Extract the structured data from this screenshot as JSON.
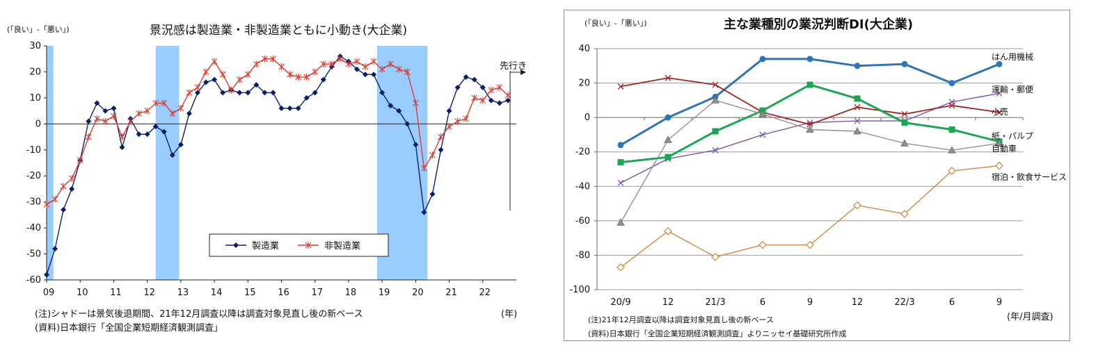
{
  "chart_data": [
    {
      "type": "line",
      "title": "景況感は製造業・非製造業ともに小動き(大企業)",
      "ylabel": "(「良い」-「悪い」)",
      "xlabel": "(年)",
      "ylim": [
        -60,
        30
      ],
      "yticks": [
        -60,
        -50,
        -40,
        -30,
        -20,
        -10,
        0,
        10,
        20,
        30
      ],
      "xticks": [
        "09",
        "10",
        "11",
        "12",
        "13",
        "14",
        "15",
        "16",
        "17",
        "18",
        "19",
        "20",
        "21",
        "22"
      ],
      "x_start": 2009.0,
      "x_step": 0.25,
      "shadows": [
        [
          2009.0,
          2009.2
        ],
        [
          2012.25,
          2012.95
        ],
        [
          2018.85,
          2020.35
        ]
      ],
      "forecast_label": "先行き",
      "grid": false,
      "legend_position": "bottom-center",
      "series": [
        {
          "name": "製造業",
          "color": "#0a1f6b",
          "marker": "diamond",
          "values": [
            -58,
            -48,
            -33,
            -25,
            -14,
            1,
            8,
            5,
            6,
            -9,
            2,
            -4,
            -4,
            -1,
            -3,
            -12,
            -8,
            4,
            12,
            16,
            17,
            12,
            13,
            12,
            12,
            15,
            12,
            12,
            6,
            6,
            6,
            10,
            12,
            17,
            22,
            26,
            24,
            21,
            19,
            19,
            12,
            7,
            5,
            0,
            -8,
            -34,
            -27,
            -10,
            5,
            14,
            18,
            17,
            14,
            9,
            8,
            9
          ]
        },
        {
          "name": "非製造業",
          "color": "#e03a2e",
          "marker": "asterisk",
          "values": [
            -31,
            -29,
            -24,
            -21,
            -14,
            -5,
            2,
            1,
            3,
            -5,
            1,
            4,
            5,
            8,
            8,
            4,
            6,
            12,
            14,
            20,
            24,
            19,
            13,
            17,
            19,
            23,
            25,
            25,
            22,
            19,
            18,
            18,
            20,
            23,
            23,
            25,
            23,
            24,
            22,
            24,
            21,
            23,
            21,
            20,
            8,
            -17,
            -12,
            -5,
            -1,
            1,
            2,
            10,
            9,
            13,
            14,
            11
          ]
        }
      ],
      "notes": [
        "(注)シャドーは景気後退期間、21年12月調査以降は調査対象見直し後の新ベース",
        "(資料)日本銀行「全国企業短期経済観測調査」"
      ]
    },
    {
      "type": "line",
      "title": "主な業種別の業況判断DI(大企業)",
      "ylabel": "(「良い」-「悪い」)",
      "xlabel": "(年/月調査)",
      "ylim": [
        -100,
        40
      ],
      "yticks": [
        -100,
        -80,
        -60,
        -40,
        -20,
        0,
        20,
        40
      ],
      "categories": [
        "20/9",
        "12",
        "21/3",
        "6",
        "9",
        "12",
        "22/3",
        "6",
        "9"
      ],
      "grid": true,
      "series": [
        {
          "name": "はん用機械",
          "color": "#2e75b6",
          "marker": "circle",
          "values": [
            -16,
            0,
            12,
            34,
            34,
            30,
            31,
            20,
            31
          ]
        },
        {
          "name": "運輸・郵便",
          "color": "#7a54a6",
          "marker": "x",
          "values": [
            -38,
            -24,
            -19,
            -10,
            -3,
            -2,
            -2,
            9,
            14
          ]
        },
        {
          "name": "小売",
          "color": "#a6211e",
          "marker": "x",
          "values": [
            18,
            23,
            19,
            3,
            -4,
            6,
            2,
            7,
            3
          ]
        },
        {
          "name": "紙・パルプ",
          "color": "#1aa653",
          "marker": "square",
          "values": [
            -26,
            -23,
            -8,
            4,
            19,
            11,
            -3,
            -7,
            -14
          ]
        },
        {
          "name": "自動車",
          "color": "#909090",
          "marker": "triangle",
          "values": [
            -61,
            -13,
            10,
            2,
            -7,
            -8,
            -15,
            -19,
            -15
          ]
        },
        {
          "name": "宿泊・飲食サービス",
          "color": "#d6853f",
          "marker": "diamond-open",
          "values": [
            -87,
            -66,
            -81,
            -74,
            -74,
            -51,
            -56,
            -31,
            -28
          ]
        }
      ],
      "notes": [
        "(注)21年12月調査以降は調査対象見直し後の新ベース",
        "(資料)日本銀行「全国企業短期経済観測調査」よりニッセイ基礎研究所作成"
      ]
    }
  ]
}
